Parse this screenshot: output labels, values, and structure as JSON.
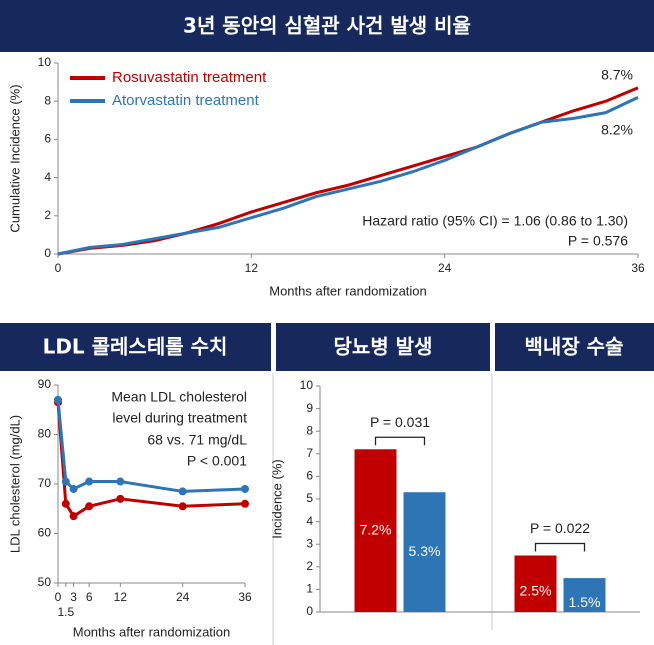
{
  "chart_data": [
    {
      "type": "line",
      "title": "3년 동안의 심혈관 사건 발생 비율",
      "xlabel": "Months after randomization",
      "ylabel": "Cumulative Incidence (%)",
      "x": [
        0,
        2,
        4,
        6,
        8,
        10,
        12,
        14,
        16,
        18,
        20,
        22,
        24,
        26,
        28,
        30,
        32,
        34,
        36
      ],
      "series": [
        {
          "name": "Rosuvastatin treatment",
          "color": "#c00000",
          "values": [
            0,
            0.3,
            0.45,
            0.7,
            1.1,
            1.6,
            2.2,
            2.7,
            3.2,
            3.6,
            4.1,
            4.6,
            5.1,
            5.6,
            6.3,
            6.9,
            7.5,
            8.0,
            8.7
          ]
        },
        {
          "name": "Atorvastatin treatment",
          "color": "#2e75b6",
          "values": [
            0,
            0.35,
            0.5,
            0.8,
            1.1,
            1.4,
            1.9,
            2.4,
            3.0,
            3.4,
            3.8,
            4.3,
            4.9,
            5.6,
            6.3,
            6.9,
            7.1,
            7.4,
            8.2
          ]
        }
      ],
      "xlim": [
        0,
        36
      ],
      "ylim": [
        0,
        10
      ],
      "xticks": [
        0,
        12,
        24,
        36
      ],
      "yticks": [
        0,
        2,
        4,
        6,
        8,
        10
      ],
      "annotations": [
        "8.7%",
        "8.2%",
        "Hazard ratio (95% CI) = 1.06 (0.86 to 1.30)",
        "P = 0.576"
      ]
    },
    {
      "type": "line",
      "title": "LDL 콜레스테롤 수치",
      "xlabel": "Months after randomization",
      "ylabel": "LDL cholesterol (mg/dL)",
      "x": [
        0,
        1.5,
        3,
        6,
        12,
        24,
        36
      ],
      "series": [
        {
          "color": "#c00000",
          "values": [
            86.5,
            66,
            63.5,
            65.5,
            67,
            65.5,
            66
          ]
        },
        {
          "color": "#2e75b6",
          "values": [
            87,
            70.5,
            69,
            70.5,
            70.5,
            68.5,
            69
          ]
        }
      ],
      "markers": true,
      "xlim": [
        0,
        36
      ],
      "ylim": [
        50,
        90
      ],
      "xticks": [
        0,
        1.5,
        3,
        6,
        12,
        24,
        36
      ],
      "yticks": [
        50,
        60,
        70,
        80,
        90
      ],
      "annotations": [
        "Mean LDL cholesterol",
        "level during treatment",
        "68 vs. 71 mg/dL",
        "P < 0.001"
      ]
    },
    {
      "type": "bar",
      "ylabel": "Incidence (%)",
      "categories": [
        "당뇨병 발생",
        "백내장 수술"
      ],
      "series": [
        {
          "color": "#c00000",
          "values": [
            7.2,
            2.5
          ],
          "value_labels": [
            "7.2%",
            "2.5%"
          ]
        },
        {
          "color": "#2e75b6",
          "values": [
            5.3,
            1.5
          ],
          "value_labels": [
            "5.3%",
            "1.5%"
          ]
        }
      ],
      "ylim": [
        0,
        10
      ],
      "yticks": [
        0,
        1,
        2,
        3,
        4,
        5,
        6,
        7,
        8,
        9,
        10
      ],
      "annotations": [
        "P = 0.031",
        "P = 0.022"
      ]
    }
  ]
}
